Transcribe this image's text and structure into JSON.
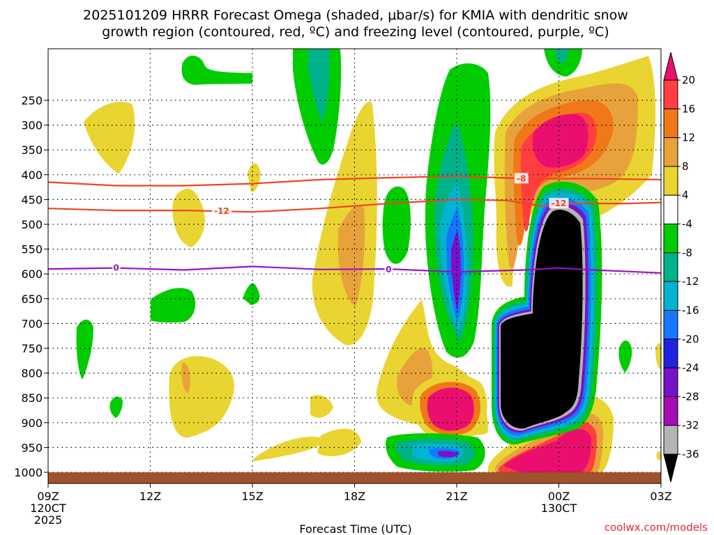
{
  "chart_data": {
    "type": "heatmap",
    "title_line1": "2025101209 HRRR Forecast Omega (shaded, μbar/s) for KMIA with dendritic snow",
    "title_line2": "growth region (contoured, red, ºC) and freezing level (contoured, purple, ºC)",
    "xlabel": "Forecast Time (UTC)",
    "credit": "coolwx.com/models",
    "x_ticks": [
      {
        "hour": 0,
        "lines": [
          "09Z",
          "120CT",
          "2025"
        ]
      },
      {
        "hour": 3,
        "lines": [
          "12Z"
        ]
      },
      {
        "hour": 6,
        "lines": [
          "15Z"
        ]
      },
      {
        "hour": 9,
        "lines": [
          "18Z"
        ]
      },
      {
        "hour": 12,
        "lines": [
          "21Z"
        ]
      },
      {
        "hour": 15,
        "lines": [
          "00Z",
          "130CT"
        ]
      },
      {
        "hour": 18,
        "lines": [
          "03Z"
        ]
      }
    ],
    "y_ticks": [
      250,
      300,
      350,
      400,
      450,
      500,
      550,
      600,
      650,
      700,
      750,
      800,
      850,
      900,
      950,
      1000
    ],
    "colorbar": {
      "levels": [
        20,
        16,
        12,
        8,
        4,
        -4,
        -8,
        -12,
        -16,
        -20,
        -24,
        -28,
        -32,
        -36
      ],
      "labels": [
        "20",
        "16",
        "12",
        "8",
        "4",
        "-4",
        "-8",
        "-12",
        "-16",
        "-20",
        "-24",
        "-28",
        "-32",
        "-36"
      ],
      "colors": [
        "#ea0f6f",
        "#ff3f3f",
        "#f07818",
        "#e8a23c",
        "#e9d431",
        "#ffffff",
        "#00cc00",
        "#00b28a",
        "#00b4d2",
        "#1478ff",
        "#2222dc",
        "#7812c8",
        "#a80ab4",
        "#b4b4b4",
        "#000000"
      ]
    },
    "contours": [
      {
        "label": "-8",
        "color": "#ee4422",
        "label_hour": 13.9,
        "points": [
          [
            0,
            415
          ],
          [
            2,
            422
          ],
          [
            4,
            422
          ],
          [
            6,
            418
          ],
          [
            8,
            410
          ],
          [
            10,
            406
          ],
          [
            12,
            403
          ],
          [
            14,
            408
          ],
          [
            16,
            408
          ],
          [
            18,
            410
          ]
        ]
      },
      {
        "label": "-12",
        "color": "#ee4422",
        "label_hour": 5.1,
        "points": [
          [
            0,
            468
          ],
          [
            2,
            472
          ],
          [
            4,
            472
          ],
          [
            6,
            475
          ],
          [
            8,
            468
          ],
          [
            10,
            458
          ],
          [
            12,
            450
          ],
          [
            13.5,
            452
          ],
          [
            14.5,
            463
          ],
          [
            15.5,
            458
          ],
          [
            17,
            458
          ],
          [
            18,
            456
          ]
        ]
      },
      {
        "label": "-12",
        "color": "#ee4422",
        "label_hour": 15.0,
        "label_only": true,
        "label_p": 458
      },
      {
        "label": "0",
        "color": "#9a10c8",
        "label_hour": 2.0,
        "points": [
          [
            0,
            590
          ],
          [
            2,
            588
          ],
          [
            4,
            592
          ],
          [
            6,
            585
          ],
          [
            8,
            591
          ],
          [
            10,
            590
          ],
          [
            12,
            596
          ],
          [
            14,
            592
          ],
          [
            15,
            588
          ],
          [
            16,
            592
          ],
          [
            18,
            598
          ]
        ]
      },
      {
        "label": "0",
        "color": "#9a10c8",
        "label_hour": 10.0,
        "label_only": true,
        "label_p": 591
      }
    ]
  }
}
